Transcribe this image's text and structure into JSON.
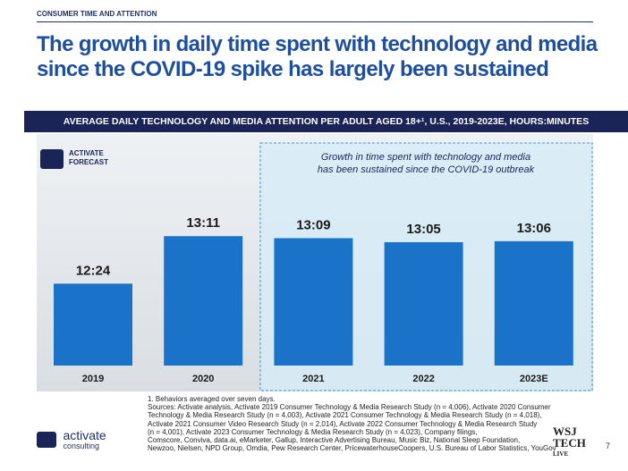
{
  "section": "CONSUMER TIME AND ATTENTION",
  "chart_data": {
    "type": "bar",
    "title": "The growth in daily time spent with technology and media since the COVID-19 spike has largely been sustained",
    "subtitle": "AVERAGE DAILY TECHNOLOGY AND MEDIA ATTENTION PER ADULT AGED 18+¹, U.S., 2019-2023E, HOURS:MINUTES",
    "categories": [
      "2019",
      "2020",
      "2021",
      "2022",
      "2023E"
    ],
    "values": [
      744,
      791,
      789,
      785,
      786
    ],
    "value_labels": [
      "12:24",
      "13:11",
      "13:09",
      "13:05",
      "13:06"
    ],
    "color": "#1a73c8",
    "ylim": [
      663,
      892
    ],
    "annotation": "Growth in time spent with technology and media has been sustained since the COVID-19 outbreak",
    "badge": [
      "ACTIVATE",
      "FORECAST"
    ]
  },
  "footnotes": [
    "1. Behaviors averaged over seven days.",
    "Sources: Activate analysis, Activate 2019 Consumer Technology & Media Research Study (n = 4,006), Activate 2020 Consumer",
    "Technology & Media Research Study (n = 4,003), Activate 2021 Consumer Technology & Media Research Study (n = 4,018),",
    "Activate 2021 Consumer Video Research Study (n = 2,014), Activate 2022 Consumer Technology & Media Research Study",
    "(n = 4,001), Activate 2023 Consumer Technology & Media Research Study (n = 4,023), Company filings,",
    "Comscore, Conviva, data.ai, eMarketer, Gallup, Interactive Advertising Bureau, Music Biz, National Sleep Foundation,",
    "Newzoo, Nielsen, NPD Group, Omdia, Pew Research Center, PricewaterhouseCoopers, U.S. Bureau of Labor Statistics, YouGov"
  ],
  "logo": [
    "activate",
    "consulting"
  ],
  "partner": [
    "WSJ",
    "TECH",
    "LIVE"
  ],
  "page": "7"
}
